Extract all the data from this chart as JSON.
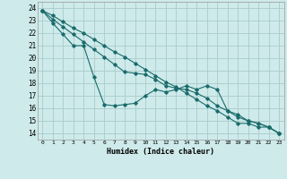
{
  "xlabel": "Humidex (Indice chaleur)",
  "bg_color": "#ceeaea",
  "grid_color": "#aacccc",
  "line_color": "#1a6b6b",
  "xlim": [
    -0.5,
    23.5
  ],
  "ylim": [
    13.5,
    24.5
  ],
  "xticks": [
    0,
    1,
    2,
    3,
    4,
    5,
    6,
    7,
    8,
    9,
    10,
    11,
    12,
    13,
    14,
    15,
    16,
    17,
    18,
    19,
    20,
    21,
    22,
    23
  ],
  "yticks": [
    14,
    15,
    16,
    17,
    18,
    19,
    20,
    21,
    22,
    23,
    24
  ],
  "series": [
    {
      "x": [
        0,
        1,
        2,
        3,
        4,
        5,
        6,
        7,
        8,
        9,
        10,
        11,
        12,
        13,
        14,
        15,
        16,
        17,
        18,
        19,
        20,
        21,
        22,
        23
      ],
      "y": [
        23.8,
        23.4,
        22.9,
        22.4,
        22.0,
        21.5,
        21.0,
        20.5,
        20.1,
        19.6,
        19.1,
        18.6,
        18.1,
        17.7,
        17.2,
        16.7,
        16.2,
        15.8,
        15.3,
        14.8,
        14.8,
        14.5,
        14.5,
        14.0
      ]
    },
    {
      "x": [
        0,
        1,
        2,
        3,
        4,
        5,
        6,
        7,
        8,
        9,
        10,
        11,
        12,
        13,
        14,
        15,
        16,
        17,
        18,
        19,
        20,
        21,
        22,
        23
      ],
      "y": [
        23.8,
        22.8,
        21.9,
        21.0,
        21.0,
        18.5,
        16.3,
        16.2,
        16.3,
        16.4,
        17.0,
        17.5,
        17.3,
        17.5,
        17.8,
        17.5,
        17.8,
        17.5,
        15.8,
        15.3,
        15.0,
        14.8,
        14.5,
        14.0
      ]
    },
    {
      "x": [
        0,
        1,
        2,
        3,
        4,
        5,
        6,
        7,
        8,
        9,
        10,
        11,
        12,
        13,
        14,
        15,
        16,
        17,
        18,
        19,
        20,
        21,
        22,
        23
      ],
      "y": [
        23.8,
        23.1,
        22.5,
        21.9,
        21.3,
        20.7,
        20.1,
        19.5,
        18.9,
        18.8,
        18.7,
        18.3,
        17.8,
        17.6,
        17.5,
        17.2,
        16.8,
        16.2,
        15.8,
        15.5,
        15.0,
        14.8,
        14.5,
        14.0
      ]
    }
  ]
}
